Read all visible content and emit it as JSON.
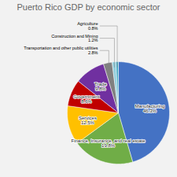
{
  "chart_data": {
    "type": "pie",
    "title": "Puerto Rico GDP by economic sector",
    "categories": [
      "Manufacturing",
      "Finance, Insurance, and real estate",
      "Services",
      "Government",
      "Trade",
      "Transportation and other public utilities",
      "Construction and Mining",
      "Agriculture"
    ],
    "values": [
      46.3,
      19.8,
      12.5,
      8.6,
      9.8,
      2.8,
      1.2,
      0.8
    ],
    "value_labels": [
      "46.3%",
      "19.8%",
      "12.5%",
      "8.6%",
      "9.8%",
      "2.8%",
      "1.2%",
      "0.8%"
    ],
    "colors": [
      "#4472C4",
      "#70AD47",
      "#FFC000",
      "#C00000",
      "#7030A0",
      "#808080",
      "#92CDDC",
      "#4BACC6"
    ],
    "data_labels": true
  }
}
